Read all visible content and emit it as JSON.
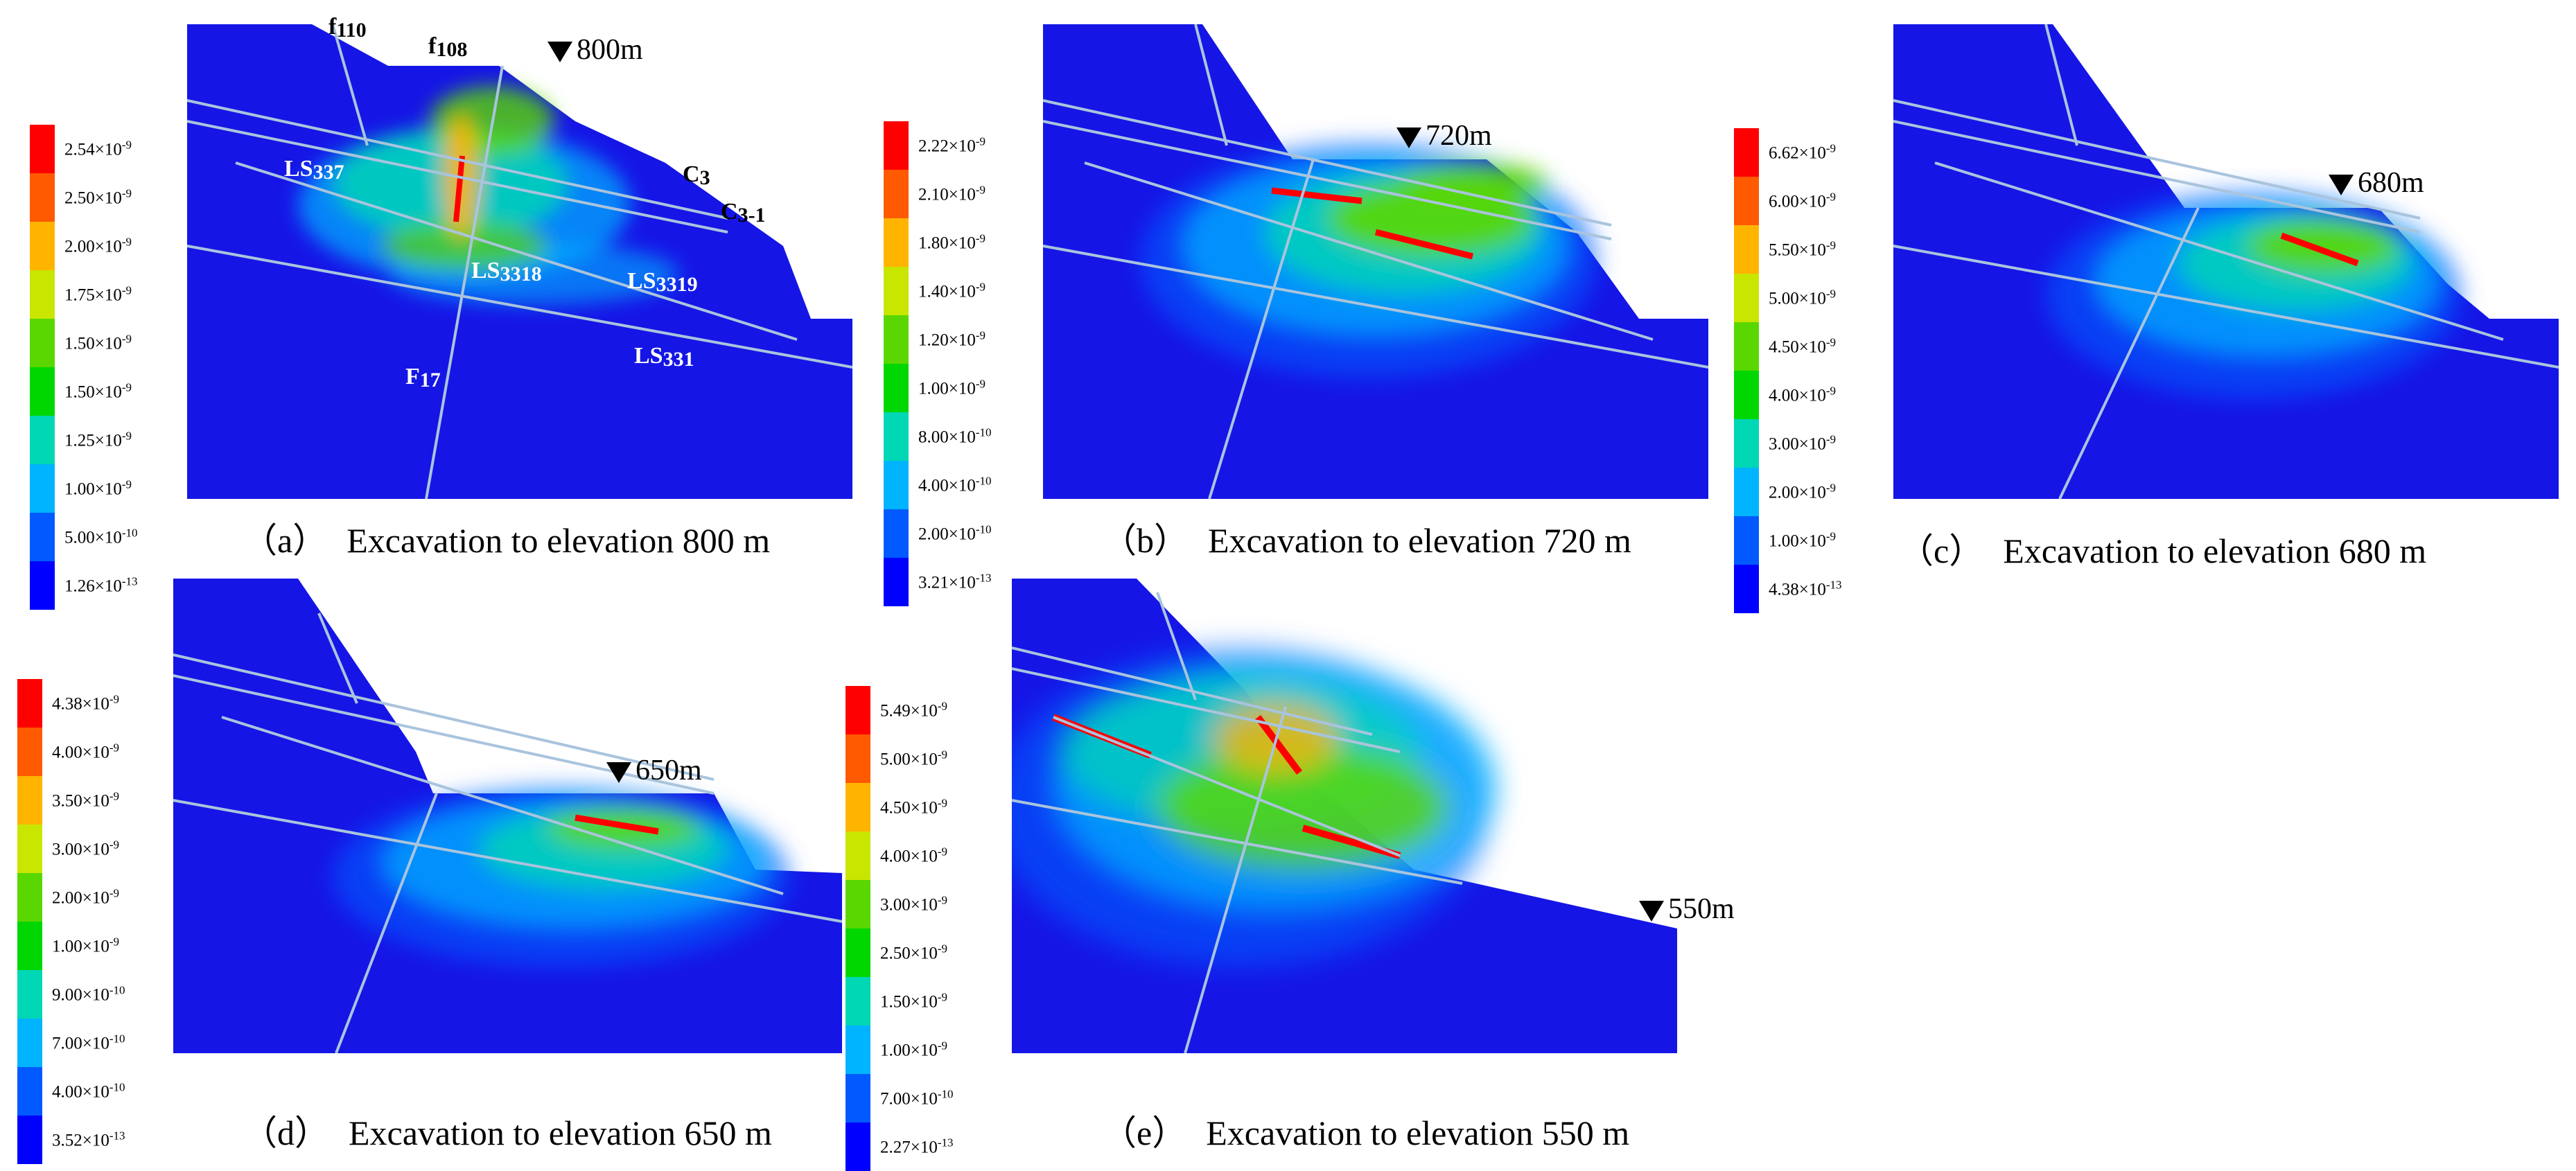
{
  "colors": {
    "model_blue": "#1515e6",
    "fault_line": "#a9c4dd",
    "legend_colors": [
      "#ff0000",
      "#ff5a00",
      "#ffb400",
      "#c8e600",
      "#5ad700",
      "#00d700",
      "#00d7b4",
      "#00b4ff",
      "#005aff",
      "#0000ff"
    ]
  },
  "panels": {
    "a": {
      "caption_letter": "（a）",
      "caption_text": "Excavation to elevation 800 m",
      "elevation": "800m",
      "legend": [
        "2.54×10^-9",
        "2.50×10^-9",
        "2.00×10^-9",
        "1.75×10^-9",
        "1.50×10^-9",
        "1.50×10^-9",
        "1.25×10^-9",
        "1.00×10^-9",
        "5.00×10^-10",
        "1.26×10^-13"
      ],
      "fault_labels": {
        "f110": "f110",
        "f108": "f108",
        "c3": "C3",
        "c3_1": "C3-1",
        "ls337": "LS337",
        "ls3318": "LS3318",
        "ls3319": "LS3319",
        "ls331": "LS331",
        "f17": "F17"
      }
    },
    "b": {
      "caption_letter": "（b）",
      "caption_text": "Excavation to elevation 720 m",
      "elevation": "720m",
      "legend": [
        "2.22×10^-9",
        "2.10×10^-9",
        "1.80×10^-9",
        "1.40×10^-9",
        "1.20×10^-9",
        "1.00×10^-9",
        "8.00×10^-10",
        "4.00×10^-10",
        "2.00×10^-10",
        "3.21×10^-13"
      ]
    },
    "c": {
      "caption_letter": "（c）",
      "caption_text": "Excavation to elevation 680 m",
      "elevation": "680m",
      "legend": [
        "6.62×10^-9",
        "6.00×10^-9",
        "5.50×10^-9",
        "5.00×10^-9",
        "4.50×10^-9",
        "4.00×10^-9",
        "3.00×10^-9",
        "2.00×10^-9",
        "1.00×10^-9",
        "4.38×10^-13"
      ]
    },
    "d": {
      "caption_letter": "（d）",
      "caption_text": "Excavation to elevation 650 m",
      "elevation": "650m",
      "legend": [
        "4.38×10^-9",
        "4.00×10^-9",
        "3.50×10^-9",
        "3.00×10^-9",
        "2.00×10^-9",
        "1.00×10^-9",
        "9.00×10^-10",
        "7.00×10^-10",
        "4.00×10^-10",
        "3.52×10^-13"
      ]
    },
    "e": {
      "caption_letter": "（e）",
      "caption_text": "Excavation to elevation 550 m",
      "elevation": "550m",
      "legend": [
        "5.49×10^-9",
        "5.00×10^-9",
        "4.50×10^-9",
        "4.00×10^-9",
        "3.00×10^-9",
        "2.50×10^-9",
        "1.50×10^-9",
        "1.00×10^-9",
        "7.00×10^-10",
        "2.27×10^-13"
      ]
    }
  }
}
